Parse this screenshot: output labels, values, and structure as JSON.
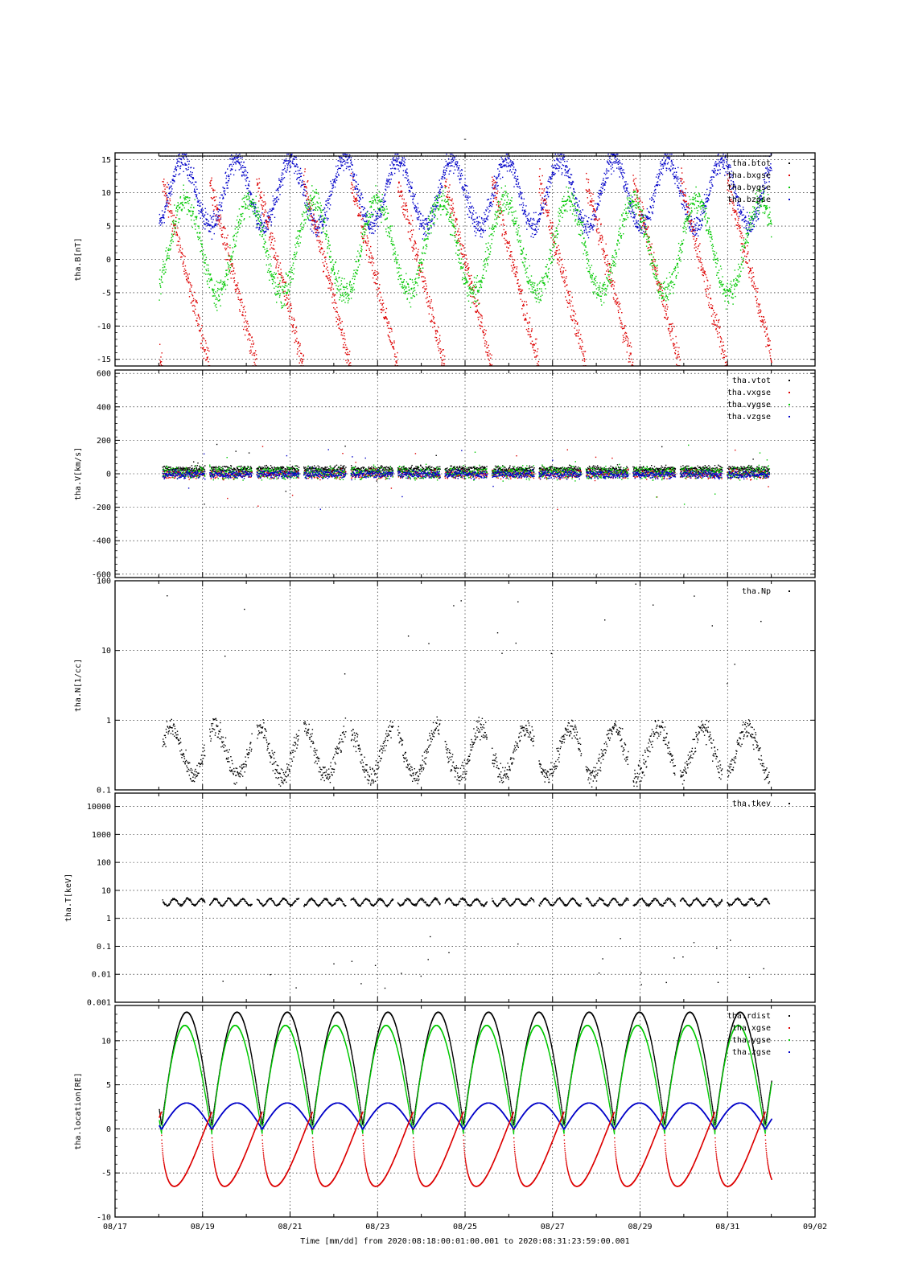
{
  "chart_data": {
    "type": "scatter",
    "title": "-",
    "footer": "Time [mm/dd]  from 2020:08:18:00:01:00.001  to  2020:08:31:23:59:00.001",
    "x_axis": {
      "range": [
        "08/17",
        "09/02"
      ],
      "tick_labels": [
        "08/17",
        "08/19",
        "08/21",
        "08/23",
        "08/25",
        "08/27",
        "08/29",
        "08/31",
        "09/02"
      ]
    },
    "grid": true,
    "legend_position": "top-right",
    "panels": [
      {
        "ylabel": "tha.B[nT]",
        "scale": "linear",
        "ylim": [
          -16,
          16
        ],
        "ticks": [
          -15,
          -10,
          -5,
          0,
          5,
          10,
          15
        ],
        "tick_labels": [
          "-15",
          "-10",
          "-5",
          "0",
          "5",
          "10",
          "15"
        ],
        "series": [
          {
            "name": "tha.btot",
            "color": "#000000"
          },
          {
            "name": "tha.bxgse",
            "color": "#dd0000"
          },
          {
            "name": "tha.bygse",
            "color": "#00c800"
          },
          {
            "name": "tha.bzgse",
            "color": "#0000c8"
          }
        ]
      },
      {
        "ylabel": "tha.V[km/s]",
        "scale": "linear",
        "ylim": [
          -620,
          620
        ],
        "ticks": [
          -600,
          -400,
          -200,
          0,
          200,
          400,
          600
        ],
        "tick_labels": [
          "-600",
          "-400",
          "-200",
          "0",
          "200",
          "400",
          "600"
        ],
        "series": [
          {
            "name": "tha.vtot",
            "color": "#000000"
          },
          {
            "name": "tha.vxgse",
            "color": "#dd0000"
          },
          {
            "name": "tha.vygse",
            "color": "#00c800"
          },
          {
            "name": "tha.vzgse",
            "color": "#0000c8"
          }
        ]
      },
      {
        "ylabel": "tha.N[1/cc]",
        "scale": "log",
        "ylim": [
          0.1,
          100
        ],
        "ticks": [
          0.1,
          1,
          10,
          100
        ],
        "tick_labels": [
          "0.1",
          "1",
          "10",
          "100"
        ],
        "series": [
          {
            "name": "tha.Np",
            "color": "#000000"
          }
        ]
      },
      {
        "ylabel": "tha.T[keV]",
        "scale": "log",
        "ylim": [
          0.001,
          30000
        ],
        "ticks": [
          0.001,
          0.01,
          0.1,
          1,
          10,
          100,
          1000,
          10000
        ],
        "tick_labels": [
          "0.001",
          "0.01",
          "0.1",
          "1",
          "10",
          "100",
          "1000",
          "10000"
        ],
        "series": [
          {
            "name": "tha.tkev",
            "color": "#000000"
          }
        ]
      },
      {
        "ylabel": "tha.location[RE]",
        "scale": "linear",
        "ylim": [
          -10,
          14
        ],
        "ticks": [
          -10,
          -5,
          0,
          5,
          10
        ],
        "tick_labels": [
          "-10",
          "-5",
          "0",
          "5",
          "10"
        ],
        "series": [
          {
            "name": "tha.rdist",
            "color": "#000000"
          },
          {
            "name": "tha.xgse",
            "color": "#dd0000"
          },
          {
            "name": "tha.ygse",
            "color": "#00c800"
          },
          {
            "name": "tha.zgse",
            "color": "#0000c8"
          }
        ]
      }
    ]
  }
}
